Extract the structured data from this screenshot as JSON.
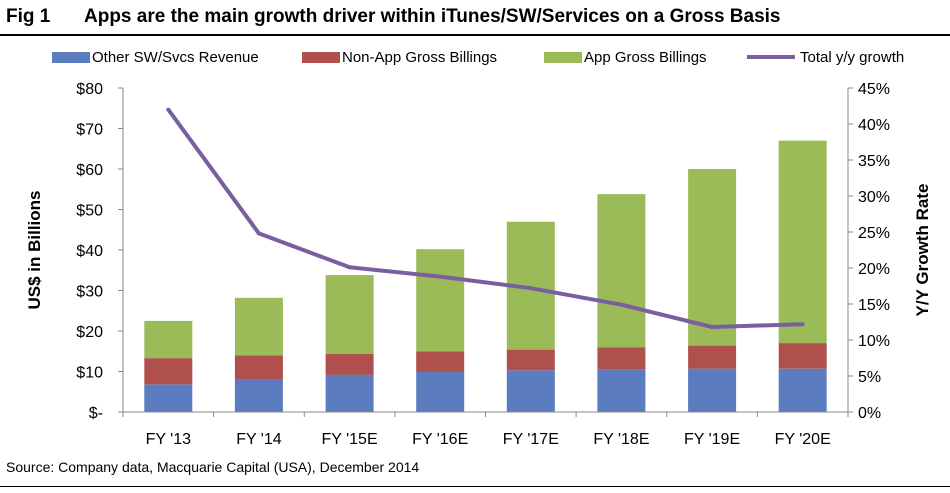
{
  "figure": {
    "number": "Fig 1",
    "title": "Apps are the main growth driver within iTunes/SW/Services on a Gross Basis",
    "source": "Source: Company data, Macquarie Capital (USA), December 2014"
  },
  "chart_data": {
    "type": "bar",
    "stacked": true,
    "categories": [
      "FY '13",
      "FY '14",
      "FY '15E",
      "FY '16E",
      "FY '17E",
      "FY '18E",
      "FY '19E",
      "FY '20E"
    ],
    "series": [
      {
        "name": "Other SW/Svcs Revenue",
        "color": "#5b7dbf",
        "values": [
          6.8,
          8.0,
          9.2,
          10.0,
          10.3,
          10.6,
          10.7,
          10.7
        ]
      },
      {
        "name": "Non-App Gross Billings",
        "color": "#b0504c",
        "values": [
          6.5,
          6.0,
          5.2,
          5.0,
          5.1,
          5.4,
          5.7,
          6.3
        ]
      },
      {
        "name": "App Gross Billings",
        "color": "#9bbb59",
        "values": [
          9.2,
          14.2,
          19.4,
          25.2,
          31.6,
          37.8,
          43.6,
          50.0
        ]
      }
    ],
    "line_series": {
      "name": "Total y/y growth",
      "color": "#7a5fa0",
      "axis": "right",
      "values": [
        42.0,
        24.8,
        20.1,
        18.8,
        17.2,
        14.9,
        11.8,
        12.2
      ]
    },
    "ylabel": "US$ in Billions",
    "ylabel_right": "Y/Y Growth Rate",
    "ylim": [
      0,
      80
    ],
    "ylim_right": [
      0,
      45
    ],
    "yticks": [
      "$-",
      "$10",
      "$20",
      "$30",
      "$40",
      "$50",
      "$60",
      "$70",
      "$80"
    ],
    "yticks_right": [
      "0%",
      "5%",
      "10%",
      "15%",
      "20%",
      "25%",
      "30%",
      "35%",
      "40%",
      "45%"
    ],
    "legend": [
      "Other SW/Svcs Revenue",
      "Non-App Gross Billings",
      "App Gross Billings",
      "Total y/y growth"
    ],
    "legend_position": "top",
    "grid": false
  }
}
